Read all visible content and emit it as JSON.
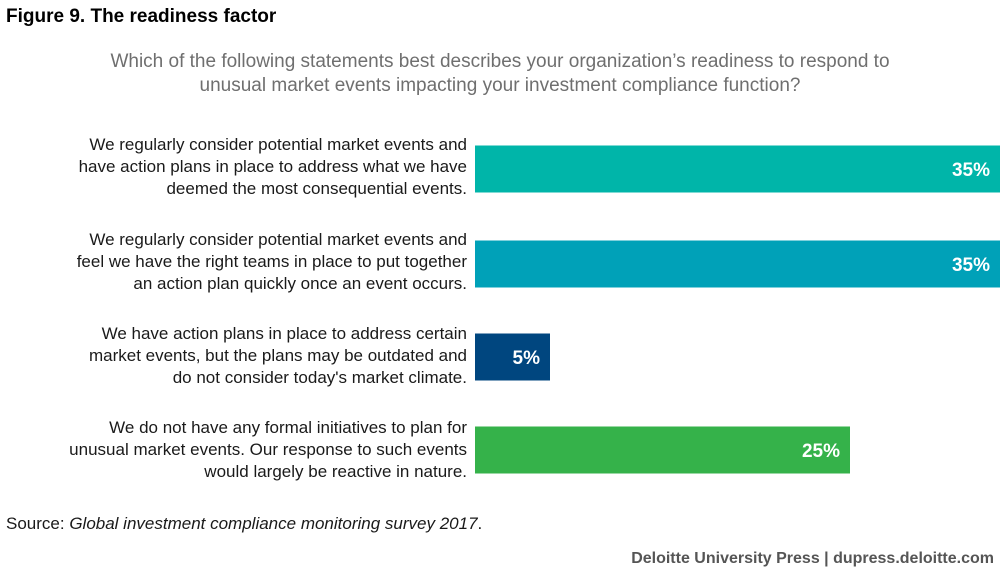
{
  "title": "Figure 9. The readiness factor",
  "question_lines": [
    "Which of the following statements best describes your organization’s readiness to respond to",
    "unusual market events impacting your investment compliance function?"
  ],
  "chart_data": {
    "type": "bar",
    "orientation": "horizontal",
    "categories": [
      "We regularly consider potential market events and have action plans in place to address what we have deemed the most consequential events.",
      "We regularly consider potential market events and feel we have the right teams in place to put together an action plan quickly once an event occurs.",
      "We have action plans in place to address certain market events, but the plans may be outdated and do not consider today's market climate.",
      "We do not have any formal initiatives to plan for unusual market events. Our response to such events would largely be reactive in nature."
    ],
    "category_lines": [
      [
        "We regularly consider potential market events and",
        "have action plans in place to address what we have",
        "deemed the most consequential events."
      ],
      [
        "We regularly consider potential market events and",
        "feel we have the right teams in place to put together",
        "an action plan quickly once an event occurs."
      ],
      [
        "We have action plans in place to address certain",
        "market events, but the plans may be outdated and",
        "do not consider today's market climate."
      ],
      [
        "We do not have any formal initiatives to plan for",
        "unusual market events. Our response to such events",
        "would largely be reactive in nature."
      ]
    ],
    "values": [
      35,
      35,
      5,
      25
    ],
    "value_labels": [
      "35%",
      "35%",
      "5%",
      "25%"
    ],
    "colors": [
      "#00b5a9",
      "#00a1b8",
      "#00467f",
      "#35b24a"
    ],
    "xlim": [
      0,
      35
    ],
    "grid": false,
    "legend": "none"
  },
  "source": {
    "prefix": "Source: ",
    "title": "Global investment compliance monitoring survey 2017",
    "suffix": "."
  },
  "footer": "Deloitte University Press  |  dupress.deloitte.com"
}
